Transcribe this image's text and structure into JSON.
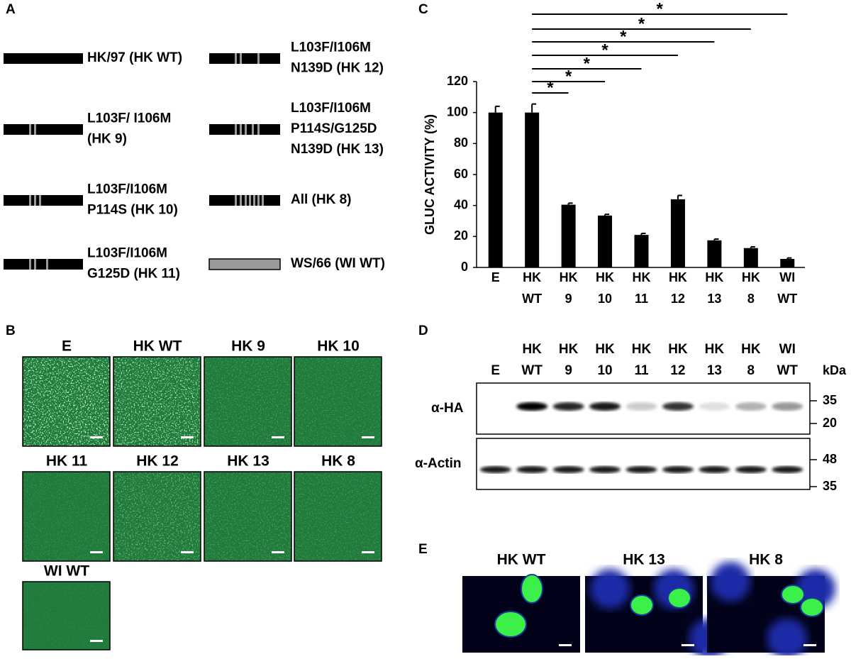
{
  "panel_labels": [
    "A",
    "B",
    "C",
    "D",
    "E"
  ],
  "panel_a": {
    "constructs": [
      {
        "lines": [
          "HK/97 (HK WT)"
        ]
      },
      {
        "lines": [
          "L103F/ I106M",
          "(HK 9)"
        ]
      },
      {
        "lines": [
          "L103F/I106M",
          "P114S (HK 10)"
        ]
      },
      {
        "lines": [
          "L103F/I106M",
          "G125D (HK 11)"
        ]
      },
      {
        "lines": [
          "L103F/I106M",
          "N139D (HK 12)"
        ]
      },
      {
        "lines": [
          "L103F/I106M",
          "P114S/G125D",
          "N139D (HK 13)"
        ]
      },
      {
        "lines": [
          "All (HK 8)"
        ]
      },
      {
        "lines": [
          "WS/66 (WI WT)"
        ]
      }
    ]
  },
  "panel_b": {
    "images": [
      "E",
      "HK WT",
      "HK 9",
      "HK 10",
      "HK 11",
      "HK 12",
      "HK 13",
      "HK 8",
      "WI WT"
    ]
  },
  "chart_data": {
    "type": "bar",
    "y_label": "GLUC ACTIVITY (%)",
    "categories": [
      "E",
      "HK WT",
      "HK 9",
      "HK 10",
      "HK 11",
      "HK 12",
      "HK 13",
      "HK 8",
      "WI WT"
    ],
    "values": [
      100,
      100,
      40.5,
      33.5,
      21,
      44,
      17.5,
      12.5,
      5.5
    ],
    "errors": [
      4,
      5.5,
      1,
      0.8,
      1,
      2.5,
      0.8,
      0.8,
      0.6
    ],
    "color": "#000000",
    "ylim": [
      0,
      120
    ],
    "yticks": [
      0,
      20,
      40,
      60,
      80,
      100,
      120
    ],
    "significance": [
      {
        "label": "*",
        "pair": [
          "HK WT",
          "HK 9"
        ]
      },
      {
        "label": "*",
        "pair": [
          "HK WT",
          "HK 10"
        ]
      },
      {
        "label": "*",
        "pair": [
          "HK WT",
          "HK 11"
        ]
      },
      {
        "label": "*",
        "pair": [
          "HK WT",
          "HK 12"
        ]
      },
      {
        "label": "*",
        "pair": [
          "HK WT",
          "HK 13"
        ]
      },
      {
        "label": "*",
        "pair": [
          "HK WT",
          "HK 8"
        ]
      },
      {
        "label": "*",
        "pair": [
          "HK WT",
          "WI WT"
        ]
      }
    ]
  },
  "panel_d": {
    "lanes": [
      "E",
      "HK WT",
      "HK 9",
      "HK 10",
      "HK 11",
      "HK 12",
      "HK 13",
      "HK 8",
      "WI WT"
    ],
    "unit": "kDa",
    "blots": [
      {
        "label": "α-HA",
        "markers": [
          35,
          20
        ]
      },
      {
        "label": "α-Actin",
        "markers": [
          48,
          35
        ]
      }
    ]
  },
  "panel_e": {
    "images": [
      "HK WT",
      "HK 13",
      "HK 8"
    ]
  }
}
